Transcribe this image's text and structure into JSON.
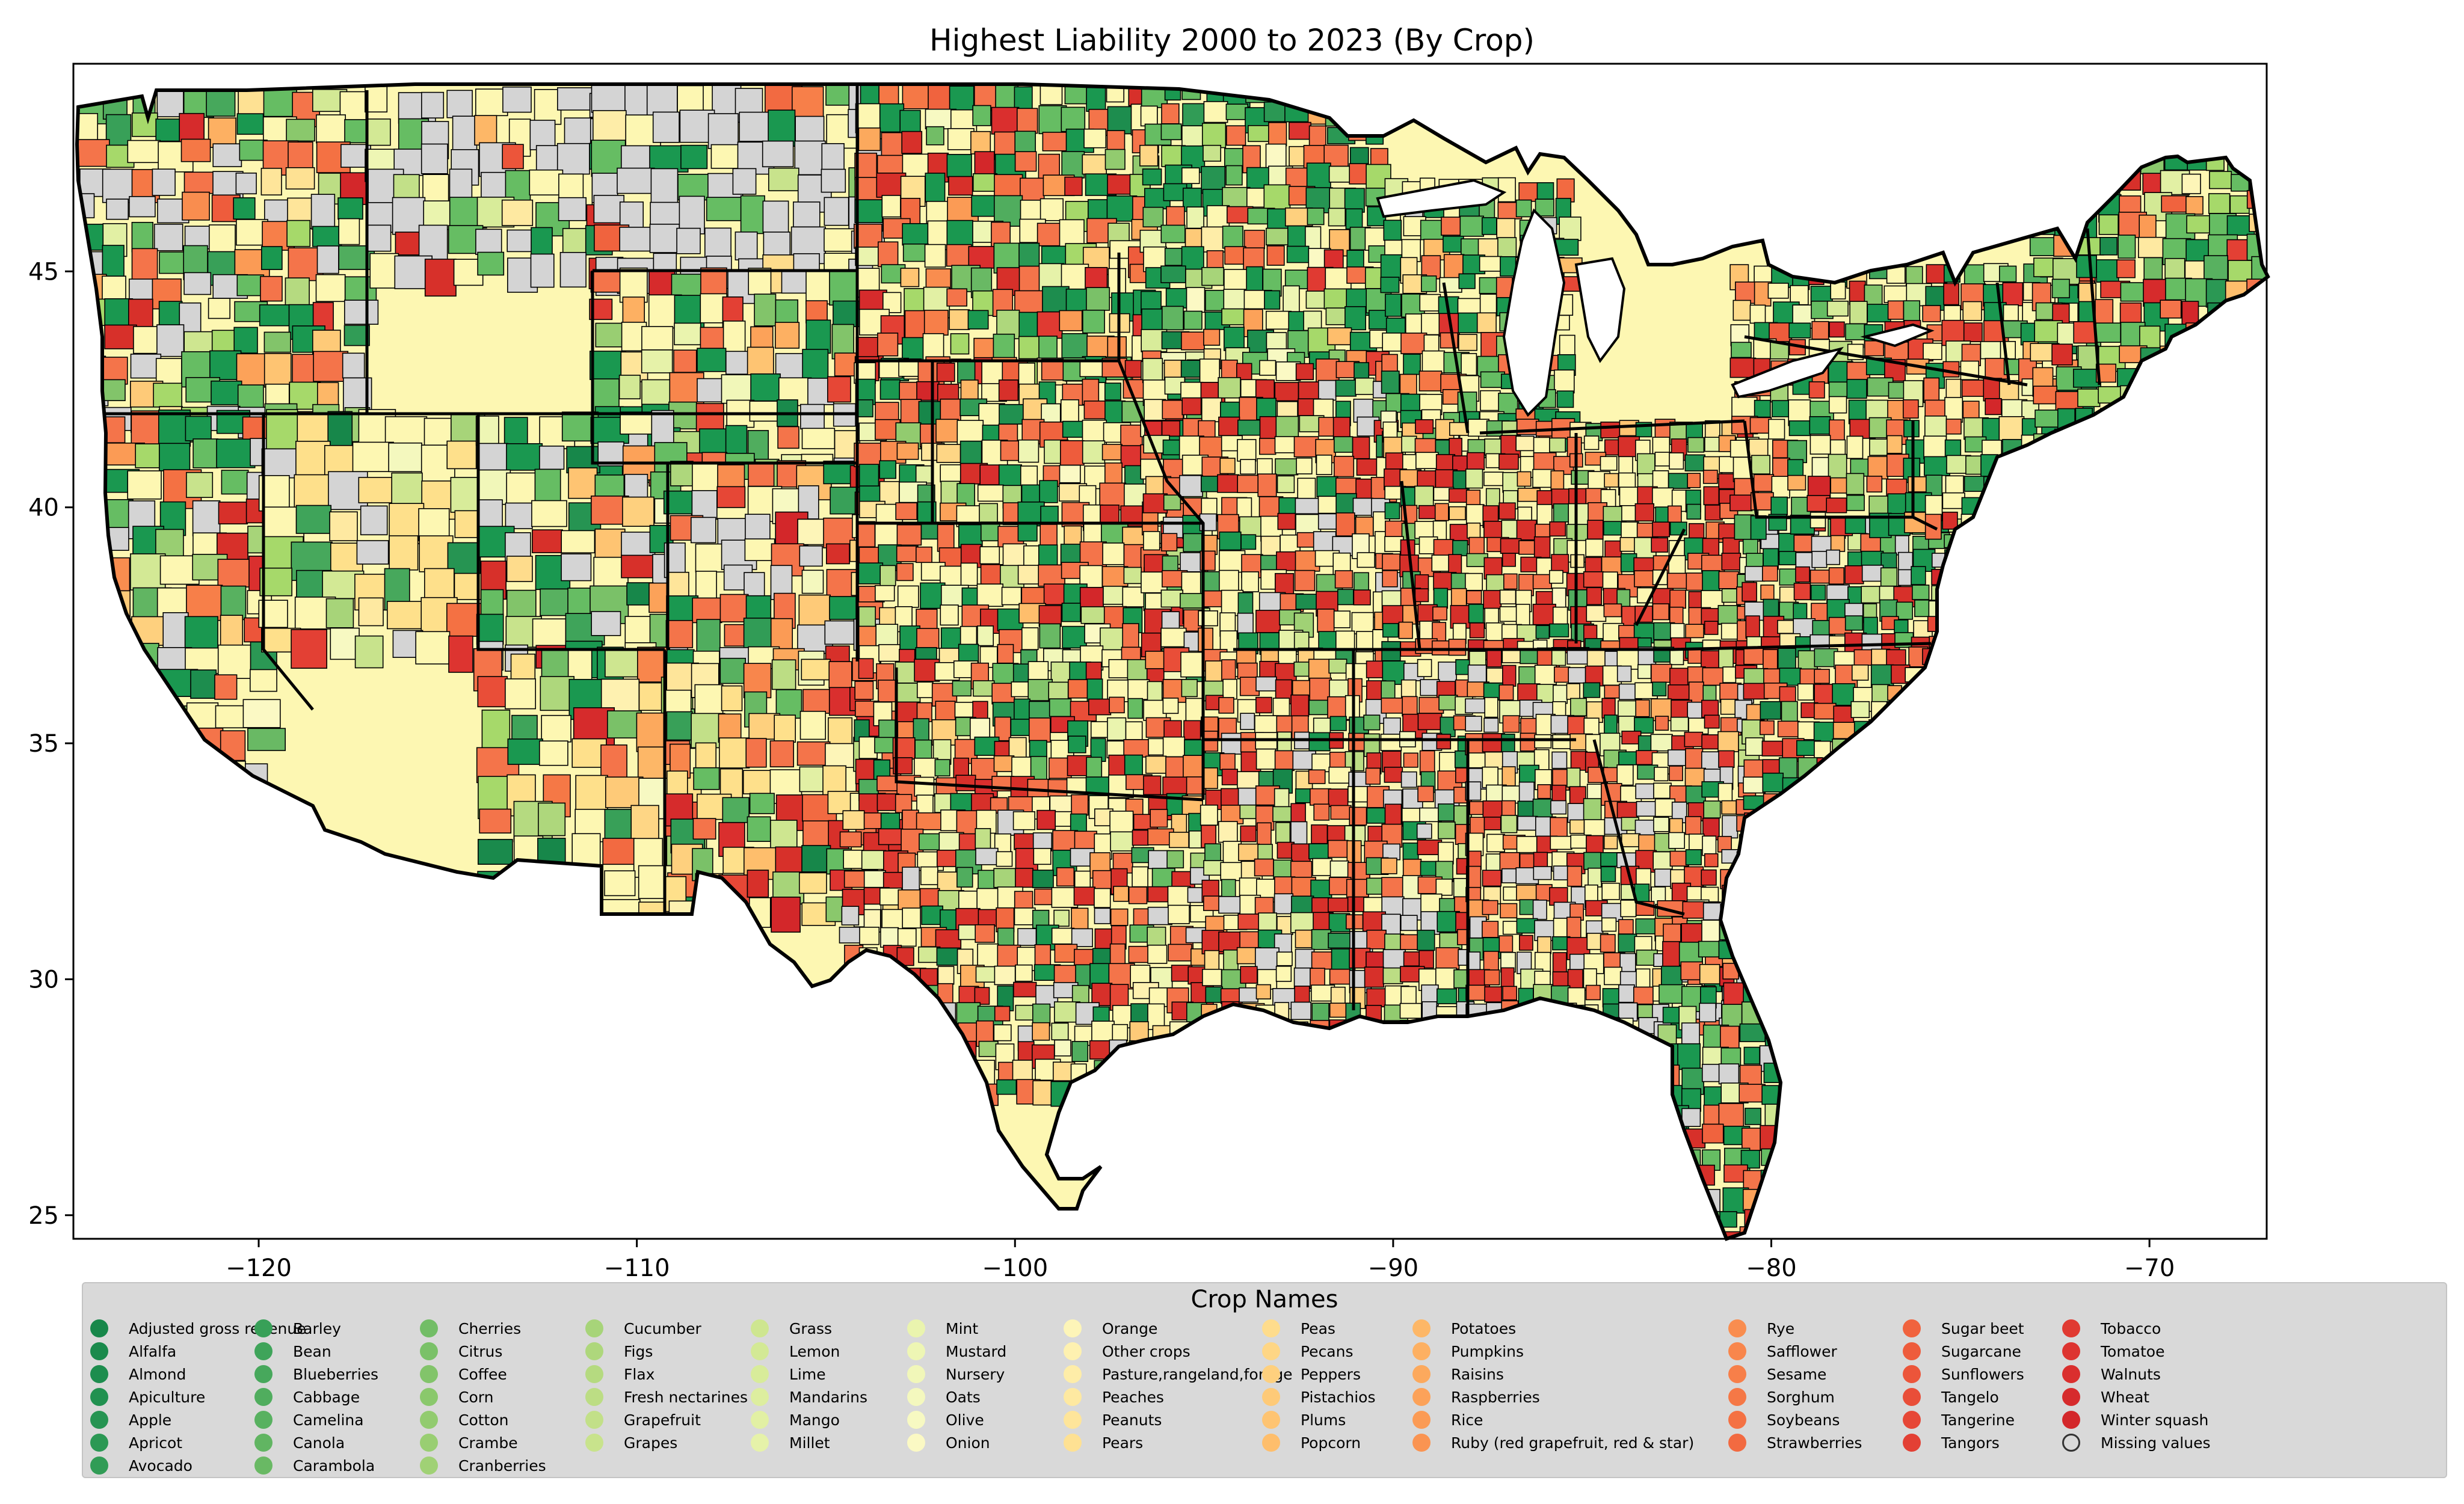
{
  "title": "Highest Liability 2000 to 2023 (By Crop)",
  "axes": {
    "x_ticks": [
      {
        "value": -120,
        "label": "−120"
      },
      {
        "value": -110,
        "label": "−110"
      },
      {
        "value": -100,
        "label": "−100"
      },
      {
        "value": -90,
        "label": "−90"
      },
      {
        "value": -80,
        "label": "−80"
      },
      {
        "value": -70,
        "label": "−70"
      }
    ],
    "y_ticks": [
      {
        "value": 45,
        "label": "45"
      },
      {
        "value": 40,
        "label": "40"
      },
      {
        "value": 35,
        "label": "35"
      },
      {
        "value": 30,
        "label": "30"
      },
      {
        "value": 25,
        "label": "25"
      }
    ],
    "xlim": [
      -124.9,
      -66.9
    ],
    "ylim": [
      24.5,
      49.4
    ]
  },
  "legend": {
    "title": "Crop Names",
    "missing_color": "#d4d4d4",
    "columns": [
      [
        {
          "label": "Adjusted gross revenue",
          "color": "#17874a"
        },
        {
          "label": "Alfalfa",
          "color": "#1a8a4c"
        },
        {
          "label": "Almond",
          "color": "#1d8d4e"
        },
        {
          "label": "Apiculture",
          "color": "#219150"
        },
        {
          "label": "Apple",
          "color": "#269452"
        },
        {
          "label": "Apricot",
          "color": "#2b9854"
        },
        {
          "label": "Avocado",
          "color": "#319c56"
        }
      ],
      [
        {
          "label": "Barley",
          "color": "#38a058"
        },
        {
          "label": "Bean",
          "color": "#3fa45a"
        },
        {
          "label": "Blueberries",
          "color": "#47a85c"
        },
        {
          "label": "Cabbage",
          "color": "#50ad5e"
        },
        {
          "label": "Camelina",
          "color": "#58b160"
        },
        {
          "label": "Canola",
          "color": "#61b562"
        },
        {
          "label": "Carambola",
          "color": "#69b964"
        }
      ],
      [
        {
          "label": "Cherries",
          "color": "#72bd66"
        },
        {
          "label": "Citrus",
          "color": "#7ac168"
        },
        {
          "label": "Coffee",
          "color": "#82c46a"
        },
        {
          "label": "Corn",
          "color": "#8ac86c"
        },
        {
          "label": "Cotton",
          "color": "#92cb6f"
        },
        {
          "label": "Crambe",
          "color": "#99ce72"
        },
        {
          "label": "Cranberries",
          "color": "#a0d175"
        }
      ],
      [
        {
          "label": "Cucumber",
          "color": "#a7d479"
        },
        {
          "label": "Figs",
          "color": "#aed77c"
        },
        {
          "label": "Flax",
          "color": "#b5da80"
        },
        {
          "label": "Fresh nectarines",
          "color": "#bcdd84"
        },
        {
          "label": "Grapefruit",
          "color": "#c2e088"
        },
        {
          "label": "Grapes",
          "color": "#c8e38c"
        }
      ],
      [
        {
          "label": "Grass",
          "color": "#cee690"
        },
        {
          "label": "Lemon",
          "color": "#d3e995"
        },
        {
          "label": "Lime",
          "color": "#d8ec9a"
        },
        {
          "label": "Mandarins",
          "color": "#ddee9f"
        },
        {
          "label": "Mango",
          "color": "#e2f0a4"
        },
        {
          "label": "Millet",
          "color": "#e6f2a9"
        }
      ],
      [
        {
          "label": "Mint",
          "color": "#eaf4ae"
        },
        {
          "label": "Mustard",
          "color": "#eef6b4"
        },
        {
          "label": "Nursery",
          "color": "#f1f7b9"
        },
        {
          "label": "Oats",
          "color": "#f4f8be"
        },
        {
          "label": "Olive",
          "color": "#f7f9c2"
        },
        {
          "label": "Onion",
          "color": "#fbf9c4"
        }
      ],
      [
        {
          "label": "Orange",
          "color": "#fdf5b8"
        },
        {
          "label": "Other crops",
          "color": "#fef1b0"
        },
        {
          "label": "Pasture,rangeland,forage",
          "color": "#feeda8"
        },
        {
          "label": "Peaches",
          "color": "#fee9a1"
        },
        {
          "label": "Peanuts",
          "color": "#fee59a"
        },
        {
          "label": "Pears",
          "color": "#fee193"
        }
      ],
      [
        {
          "label": "Peas",
          "color": "#fedc8c"
        },
        {
          "label": "Pecans",
          "color": "#fed685"
        },
        {
          "label": "Peppers",
          "color": "#fed07e"
        },
        {
          "label": "Pistachios",
          "color": "#feca78"
        },
        {
          "label": "Plums",
          "color": "#fec472"
        },
        {
          "label": "Popcorn",
          "color": "#febe6c"
        }
      ],
      [
        {
          "label": "Potatoes",
          "color": "#fdb767"
        },
        {
          "label": "Pumpkins",
          "color": "#fdb062"
        },
        {
          "label": "Raisins",
          "color": "#fca95d"
        },
        {
          "label": "Raspberries",
          "color": "#fca259"
        },
        {
          "label": "Rice",
          "color": "#fb9b55"
        },
        {
          "label": "Ruby (red grapefruit, red & star)",
          "color": "#fa9452"
        }
      ],
      [
        {
          "label": "Rye",
          "color": "#f98d4f"
        },
        {
          "label": "Safflower",
          "color": "#f8864c"
        },
        {
          "label": "Sesame",
          "color": "#f77f49"
        },
        {
          "label": "Sorghum",
          "color": "#f57846"
        },
        {
          "label": "Soybeans",
          "color": "#f47143"
        },
        {
          "label": "Strawberries",
          "color": "#f26a41"
        }
      ],
      [
        {
          "label": "Sugar beet",
          "color": "#f0633e"
        },
        {
          "label": "Sugarcane",
          "color": "#ee5c3c"
        },
        {
          "label": "Sunflowers",
          "color": "#ec553a"
        },
        {
          "label": "Tangelo",
          "color": "#e94e38"
        },
        {
          "label": "Tangerine",
          "color": "#e64736"
        },
        {
          "label": "Tangors",
          "color": "#e34034"
        }
      ],
      [
        {
          "label": "Tobacco",
          "color": "#e03a32"
        },
        {
          "label": "Tomatoe",
          "color": "#dd3430"
        },
        {
          "label": "Walnuts",
          "color": "#da2f2e"
        },
        {
          "label": "Wheat",
          "color": "#d62b2c"
        },
        {
          "label": "Winter squash",
          "color": "#d3272a"
        },
        {
          "label": "Missing values",
          "missing": true
        }
      ]
    ]
  }
}
